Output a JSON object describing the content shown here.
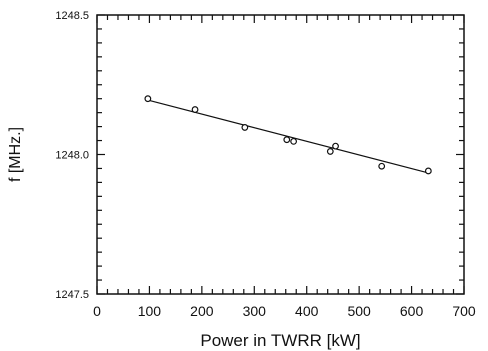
{
  "chart_data": {
    "type": "scatter",
    "title": "",
    "xlabel": "Power in TWRR [kW]",
    "ylabel": "f [MHz.]",
    "xlim": [
      0,
      700
    ],
    "ylim": [
      1247.5,
      1248.5
    ],
    "x_ticks": [
      0,
      100,
      200,
      300,
      400,
      500,
      600,
      700
    ],
    "y_ticks": [
      1247.5,
      1248.0,
      1248.5
    ],
    "x_tick_labels": [
      "0",
      "100",
      "200",
      "300",
      "400",
      "500",
      "600",
      "700"
    ],
    "y_tick_labels": [
      "1247.5",
      "1248.0",
      "1248.5"
    ],
    "grid": false,
    "legend": "none",
    "series": [
      {
        "values_x": [
          97,
          187,
          282,
          362,
          375,
          445,
          455,
          543,
          632
        ],
        "values_y": [
          1248.2,
          1248.161,
          1248.097,
          1248.053,
          1248.047,
          1248.011,
          1248.03,
          1247.958,
          1247.941
        ]
      }
    ],
    "fit_line": {
      "x": [
        97,
        632
      ],
      "y": [
        1248.195,
        1247.934
      ]
    },
    "colors": {
      "ink": "#111111",
      "background": "#ffffff"
    }
  }
}
